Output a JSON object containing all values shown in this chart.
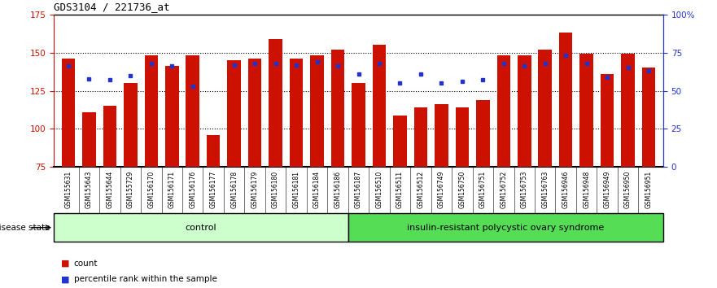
{
  "title": "GDS3104 / 221736_at",
  "samples": [
    "GSM155631",
    "GSM155643",
    "GSM155644",
    "GSM155729",
    "GSM156170",
    "GSM156171",
    "GSM156176",
    "GSM156177",
    "GSM156178",
    "GSM156179",
    "GSM156180",
    "GSM156181",
    "GSM156184",
    "GSM156186",
    "GSM156187",
    "GSM156510",
    "GSM156511",
    "GSM156512",
    "GSM156749",
    "GSM156750",
    "GSM156751",
    "GSM156752",
    "GSM156753",
    "GSM156763",
    "GSM156946",
    "GSM156948",
    "GSM156949",
    "GSM156950",
    "GSM156951"
  ],
  "bar_values": [
    146,
    111,
    115,
    130,
    148,
    141,
    148,
    96,
    145,
    146,
    159,
    146,
    148,
    152,
    130,
    155,
    109,
    114,
    116,
    114,
    119,
    148,
    148,
    152,
    163,
    149,
    136,
    149,
    140
  ],
  "blue_values": [
    141,
    133,
    132,
    135,
    143,
    141,
    128,
    null,
    142,
    143,
    143,
    142,
    144,
    141,
    136,
    143,
    130,
    136,
    130,
    131,
    132,
    143,
    141,
    143,
    148,
    143,
    134,
    140,
    138
  ],
  "ylim_left": [
    75,
    175
  ],
  "yticks_left": [
    75,
    100,
    125,
    150,
    175
  ],
  "hlines": [
    100,
    125,
    150
  ],
  "ylim_right": [
    0,
    100
  ],
  "yticks_right": [
    0,
    25,
    50,
    75,
    100
  ],
  "bar_color": "#cc1100",
  "blue_color": "#2233cc",
  "bar_bottom": 75,
  "control_count": 14,
  "control_label": "control",
  "disease_label": "insulin-resistant polycystic ovary syndrome",
  "disease_state_label": "disease state",
  "legend_count": "count",
  "legend_percentile": "percentile rank within the sample",
  "tick_label_color_left": "#cc1100",
  "tick_label_color_right": "#2233cc",
  "xtick_bg": "#cccccc",
  "control_bg": "#ccffcc",
  "disease_bg": "#55dd55"
}
